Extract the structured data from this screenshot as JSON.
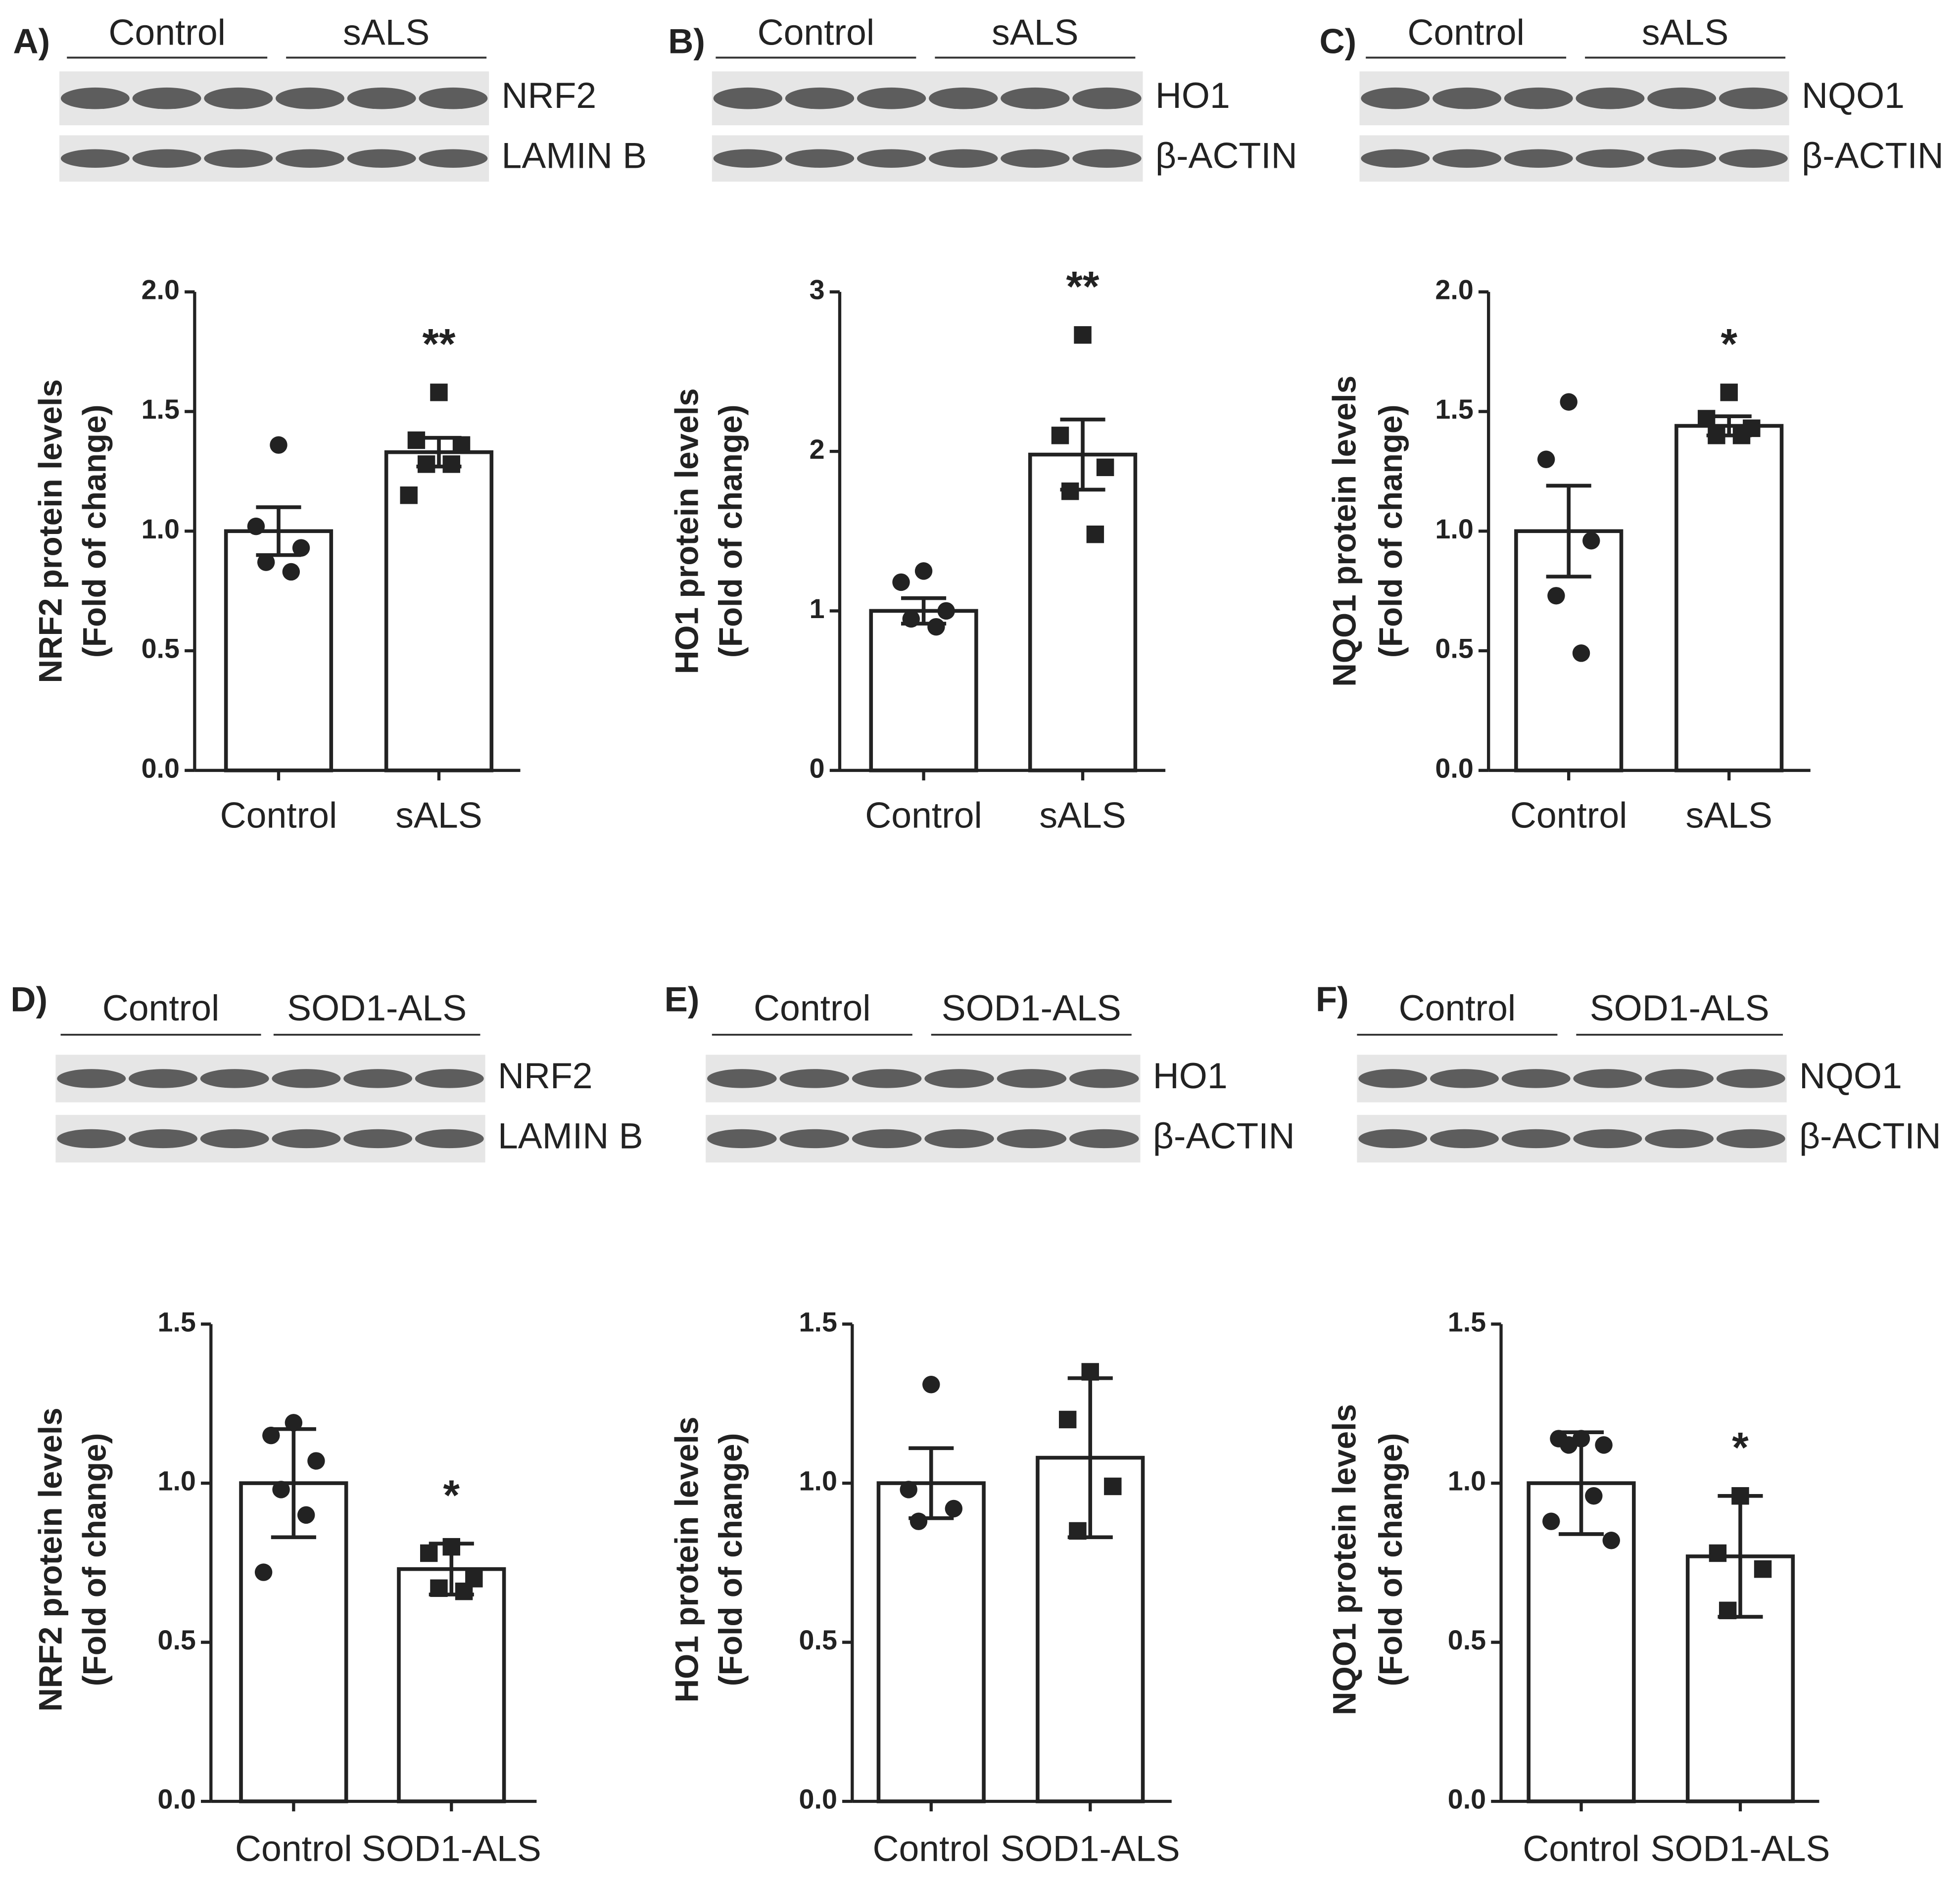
{
  "chart_data": [
    {
      "type": "bar",
      "panel": "A)",
      "blot_groups": [
        "Control",
        "sALS"
      ],
      "blots": [
        "NRF2",
        "LAMIN B"
      ],
      "ylabel": [
        "NRF2 protein levels",
        "(Fold of change)"
      ],
      "categories": [
        "Control",
        "sALS"
      ],
      "values": [
        1.0,
        1.33
      ],
      "errors": [
        0.1,
        0.06
      ],
      "points": [
        [
          1.36,
          1.02,
          0.93,
          0.87,
          0.83
        ],
        [
          1.58,
          1.38,
          1.36,
          1.28,
          1.28,
          1.15
        ]
      ],
      "annotation": "**",
      "ylim": [
        0,
        2
      ],
      "yticks": [
        {
          "value": 0,
          "label": "0.0"
        },
        0.5,
        {
          "value": 1,
          "label": "1.0"
        },
        1.5,
        {
          "value": 2,
          "label": "2.0"
        }
      ]
    },
    {
      "type": "bar",
      "panel": "B)",
      "blot_groups": [
        "Control",
        "sALS"
      ],
      "blots": [
        "HO1",
        "β-ACTIN"
      ],
      "ylabel": [
        "HO1 protein levels",
        "(Fold of change)"
      ],
      "categories": [
        "Control",
        "sALS"
      ],
      "values": [
        1.0,
        1.98
      ],
      "errors": [
        0.08,
        0.22
      ],
      "points": [
        [
          1.25,
          1.18,
          1.0,
          0.95,
          0.9
        ],
        [
          2.73,
          2.1,
          1.9,
          1.75,
          1.48
        ]
      ],
      "annotation": "**",
      "ylim": [
        0,
        3
      ],
      "yticks": [
        0,
        1,
        2,
        3
      ]
    },
    {
      "type": "bar",
      "panel": "C)",
      "blot_groups": [
        "Control",
        "sALS"
      ],
      "blots": [
        "NQO1",
        "β-ACTIN"
      ],
      "ylabel": [
        "NQO1 protein levels",
        "(Fold of change)"
      ],
      "categories": [
        "Control",
        "sALS"
      ],
      "values": [
        1.0,
        1.44
      ],
      "errors": [
        0.19,
        0.04
      ],
      "points": [
        [
          1.54,
          1.3,
          0.96,
          0.73,
          0.49
        ],
        [
          1.58,
          1.47,
          1.43,
          1.4,
          1.4
        ]
      ],
      "annotation": "*",
      "ylim": [
        0,
        2
      ],
      "yticks": [
        {
          "value": 0,
          "label": "0.0"
        },
        0.5,
        {
          "value": 1,
          "label": "1.0"
        },
        1.5,
        {
          "value": 2,
          "label": "2.0"
        }
      ]
    },
    {
      "type": "bar",
      "panel": "D)",
      "blot_groups": [
        "Control",
        "SOD1-ALS"
      ],
      "blots": [
        "NRF2",
        "LAMIN B"
      ],
      "ylabel": [
        "NRF2 protein levels",
        "(Fold of change)"
      ],
      "categories": [
        "Control",
        "SOD1-ALS"
      ],
      "values": [
        1.0,
        0.73
      ],
      "errors": [
        0.17,
        0.08
      ],
      "points": [
        [
          1.19,
          1.15,
          1.07,
          0.98,
          0.9,
          0.72
        ],
        [
          0.8,
          0.78,
          0.7,
          0.67,
          0.66
        ]
      ],
      "annotation": "*",
      "ylim": [
        0,
        1.5
      ],
      "yticks": [
        {
          "value": 0,
          "label": "0.0"
        },
        0.5,
        {
          "value": 1,
          "label": "1.0"
        },
        1.5
      ]
    },
    {
      "type": "bar",
      "panel": "E)",
      "blot_groups": [
        "Control",
        "SOD1-ALS"
      ],
      "blots": [
        "HO1",
        "β-ACTIN"
      ],
      "ylabel": [
        "HO1 protein levels",
        "(Fold of change)"
      ],
      "categories": [
        "Control",
        "SOD1-ALS"
      ],
      "values": [
        1.0,
        1.08
      ],
      "errors": [
        0.11,
        0.25
      ],
      "points": [
        [
          1.31,
          0.98,
          0.92,
          0.88
        ],
        [
          1.35,
          1.2,
          0.99,
          0.85
        ]
      ],
      "ylim": [
        0,
        1.5
      ],
      "yticks": [
        {
          "value": 0,
          "label": "0.0"
        },
        0.5,
        {
          "value": 1,
          "label": "1.0"
        },
        1.5
      ]
    },
    {
      "type": "bar",
      "panel": "F)",
      "blot_groups": [
        "Control",
        "SOD1-ALS"
      ],
      "blots": [
        "NQO1",
        "β-ACTIN"
      ],
      "ylabel": [
        "NQO1 protein levels",
        "(Fold of change)"
      ],
      "categories": [
        "Control",
        "SOD1-ALS"
      ],
      "values": [
        1.0,
        0.77
      ],
      "errors": [
        0.16,
        0.19
      ],
      "points": [
        [
          1.14,
          1.14,
          1.12,
          1.12,
          0.96,
          0.88,
          0.82
        ],
        [
          0.96,
          0.78,
          0.73,
          0.6
        ]
      ],
      "annotation": "*",
      "ylim": [
        0,
        1.5
      ],
      "yticks": [
        {
          "value": 0,
          "label": "0.0"
        },
        0.5,
        {
          "value": 1,
          "label": "1.0"
        },
        1.5
      ]
    }
  ]
}
